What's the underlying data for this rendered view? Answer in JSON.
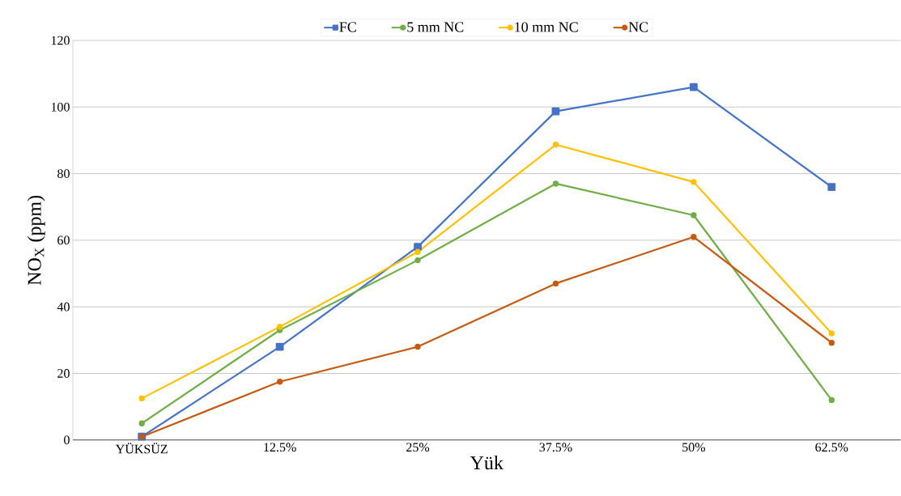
{
  "chart_data": {
    "type": "line",
    "xlabel": "Yük",
    "ylabel": "NO$_{X}$  (ppm)",
    "categories": [
      "YÜKSÜZ",
      "12.5%",
      "25%",
      "37.5%",
      "50%",
      "62.5%"
    ],
    "series": [
      {
        "name": "FC",
        "color": "#4472c4",
        "marker": "square",
        "values": [
          1,
          28,
          58,
          98.7,
          106,
          76
        ]
      },
      {
        "name": "5 mm NC",
        "color": "#70ad47",
        "marker": "circle",
        "values": [
          5,
          33,
          54,
          77,
          67.5,
          12
        ]
      },
      {
        "name": "10 mm NC",
        "color": "#ffc000",
        "marker": "circle",
        "values": [
          12.5,
          34,
          56.5,
          88.7,
          77.5,
          32
        ]
      },
      {
        "name": "NC",
        "color": "#c55a11",
        "marker": "circle",
        "values": [
          1,
          17.5,
          28,
          47,
          61,
          29.2
        ]
      }
    ],
    "ylim": [
      0,
      120
    ],
    "yticks": [
      0,
      20,
      40,
      60,
      80,
      100,
      120
    ],
    "grid": "y",
    "legend": "top",
    "line_style": "solid"
  }
}
